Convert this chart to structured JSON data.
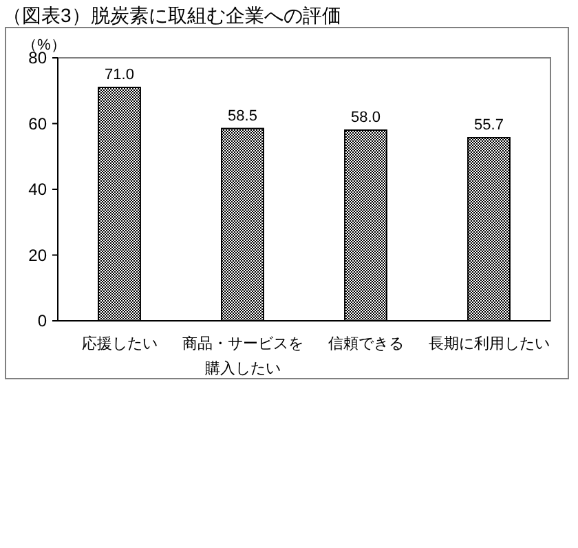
{
  "chart_data": {
    "type": "bar",
    "title": "（図表3）脱炭素に取組む企業への評価",
    "ylabel": "（%）",
    "categories": [
      "応援したい",
      "商品・サービスを購入したい",
      "信頼できる",
      "長期に利用したい"
    ],
    "values": [
      71.0,
      58.5,
      58.0,
      55.7
    ],
    "color": "#000000",
    "value_labels": [
      "71.0",
      "58.5",
      "58.0",
      "55.7"
    ],
    "ylim": [
      0,
      80
    ],
    "yticks": [
      0,
      20,
      40,
      60,
      80
    ],
    "grid": false
  }
}
